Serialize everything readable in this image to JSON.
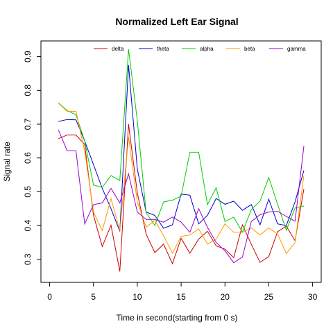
{
  "chart_data": {
    "type": "line",
    "title": "Normalized Left Ear Signal",
    "xlabel": "Time in second(starting from 0 s)",
    "ylabel": "Signal rate",
    "xlim": [
      0,
      30
    ],
    "ylim": [
      0.25,
      0.95
    ],
    "x_ticks": [
      0,
      5,
      10,
      15,
      20,
      25,
      30
    ],
    "y_ticks": [
      0.3,
      0.4,
      0.5,
      0.6,
      0.7,
      0.8,
      0.9
    ],
    "grid": false,
    "legend_position": "top",
    "x": [
      1,
      2,
      3,
      4,
      5,
      6,
      7,
      8,
      9,
      10,
      11,
      12,
      13,
      14,
      15,
      16,
      17,
      18,
      19,
      20,
      21,
      22,
      23,
      24,
      25,
      26,
      27,
      28,
      29
    ],
    "series": [
      {
        "name": "delta",
        "color": "#cc0000",
        "values": [
          0.657,
          0.668,
          0.668,
          0.64,
          0.43,
          0.338,
          0.401,
          0.264,
          0.7,
          0.497,
          0.375,
          0.32,
          0.345,
          0.287,
          0.362,
          0.318,
          0.36,
          0.383,
          0.34,
          0.33,
          0.305,
          0.402,
          0.345,
          0.291,
          0.308,
          0.382,
          0.398,
          0.355,
          0.508
        ]
      },
      {
        "name": "theta",
        "color": "#0000cc",
        "values": [
          0.708,
          0.714,
          0.713,
          0.65,
          0.58,
          0.51,
          0.45,
          0.383,
          0.875,
          0.568,
          0.44,
          0.43,
          0.392,
          0.402,
          0.493,
          0.49,
          0.405,
          0.43,
          0.48,
          0.463,
          0.472,
          0.445,
          0.462,
          0.402,
          0.478,
          0.405,
          0.4,
          0.47,
          0.563
        ]
      },
      {
        "name": "alpha",
        "color": "#00cc00",
        "values": [
          0.763,
          0.74,
          0.728,
          0.65,
          0.52,
          0.513,
          0.548,
          0.533,
          0.922,
          0.711,
          0.438,
          0.4,
          0.47,
          0.475,
          0.487,
          0.617,
          0.617,
          0.462,
          0.512,
          0.412,
          0.425,
          0.38,
          0.447,
          0.472,
          0.542,
          0.463,
          0.386,
          0.452,
          0.458
        ]
      },
      {
        "name": "beta",
        "color": "#ff9900",
        "values": [
          0.762,
          0.738,
          0.738,
          0.62,
          0.44,
          0.385,
          0.48,
          0.385,
          0.662,
          0.47,
          0.395,
          0.415,
          0.37,
          0.318,
          0.368,
          0.372,
          0.39,
          0.345,
          0.36,
          0.405,
          0.38,
          0.38,
          0.393,
          0.372,
          0.393,
          0.375,
          0.317,
          0.35,
          0.548
        ]
      },
      {
        "name": "gamma",
        "color": "#9900cc",
        "values": [
          0.683,
          0.621,
          0.621,
          0.405,
          0.462,
          0.467,
          0.51,
          0.467,
          0.553,
          0.44,
          0.418,
          0.418,
          0.41,
          0.425,
          0.41,
          0.38,
          0.45,
          0.395,
          0.35,
          0.325,
          0.29,
          0.307,
          0.412,
          0.432,
          0.44,
          0.442,
          0.427,
          0.413,
          0.635
        ]
      }
    ]
  }
}
